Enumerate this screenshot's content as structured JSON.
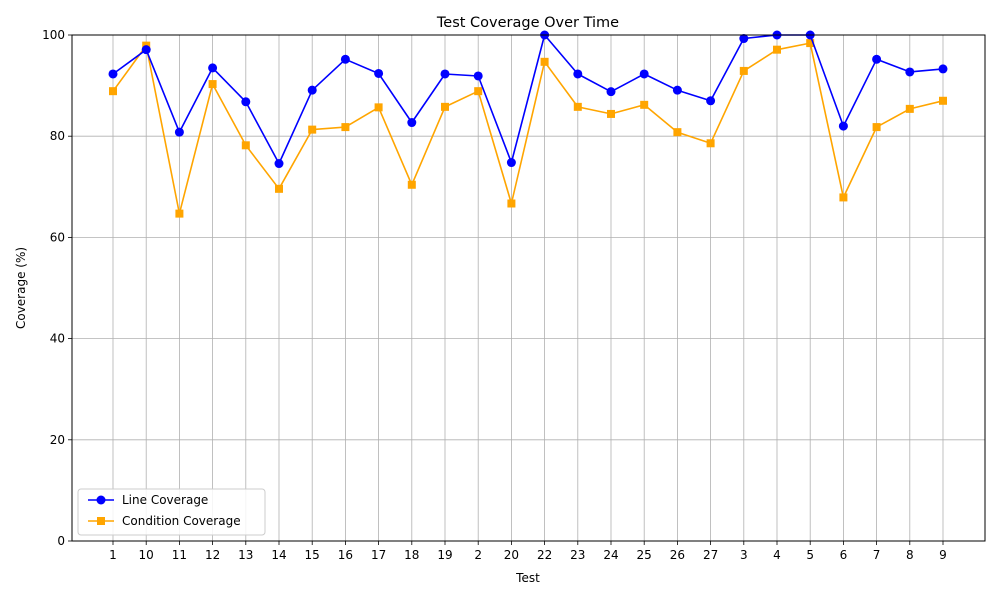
{
  "chart_data": {
    "type": "line",
    "title": "Test Coverage Over Time",
    "xlabel": "Test",
    "ylabel": "Coverage (%)",
    "categories": [
      "1",
      "10",
      "11",
      "12",
      "13",
      "14",
      "15",
      "16",
      "17",
      "18",
      "19",
      "2",
      "20",
      "22",
      "23",
      "24",
      "25",
      "26",
      "27",
      "3",
      "4",
      "5",
      "6",
      "7",
      "8",
      "9"
    ],
    "ylim": [
      0,
      100
    ],
    "yticks": [
      0,
      20,
      40,
      60,
      80,
      100
    ],
    "grid": true,
    "legend_position": "lower-left",
    "series": [
      {
        "name": "Line Coverage",
        "color": "#0000ff",
        "marker": "circle",
        "values": [
          92.3,
          97.1,
          80.8,
          93.5,
          86.8,
          74.6,
          89.1,
          95.2,
          92.4,
          82.7,
          92.3,
          91.9,
          74.8,
          100.0,
          92.3,
          88.8,
          92.3,
          89.1,
          87.0,
          99.3,
          100.0,
          100.0,
          82.0,
          95.2,
          92.7,
          93.3
        ]
      },
      {
        "name": "Condition Coverage",
        "color": "#ffa500",
        "marker": "square",
        "values": [
          88.9,
          97.9,
          64.7,
          90.3,
          78.2,
          69.6,
          81.3,
          81.8,
          85.7,
          70.4,
          85.8,
          88.9,
          66.7,
          94.7,
          85.8,
          84.4,
          86.2,
          80.8,
          78.6,
          92.9,
          97.1,
          98.4,
          67.9,
          81.8,
          85.4,
          87.0
        ]
      }
    ]
  }
}
